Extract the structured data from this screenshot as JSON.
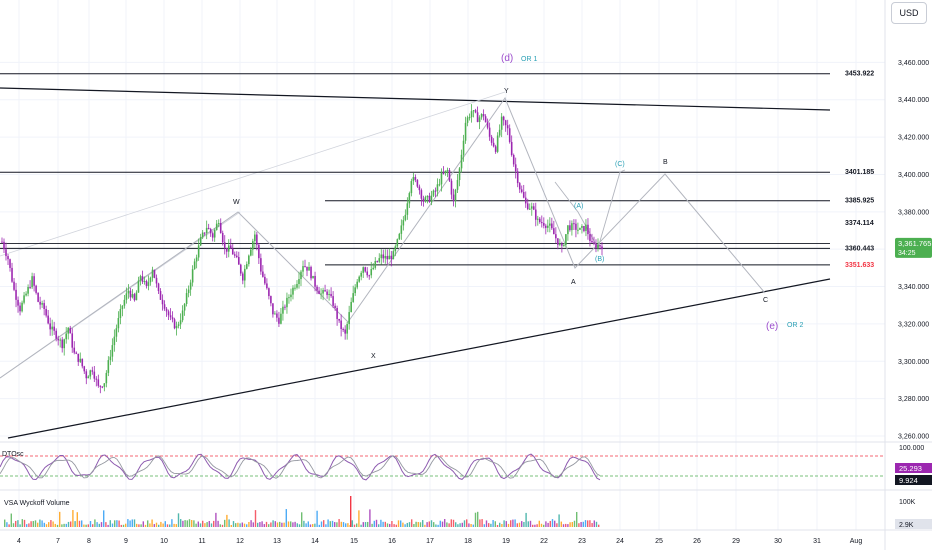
{
  "currency_label": "USD",
  "colors": {
    "up": "#4caf50",
    "down": "#9c27b0",
    "grid": "#f0f3fa",
    "line": "#131722",
    "wave_purple": "#9c4dcc",
    "wave_teal": "#2aa0b5",
    "osc_fast": "#8e5bb0",
    "osc_slow": "#9598a1",
    "red_label": "#f23645",
    "green_tag": "#4caf50"
  },
  "chart_data": [
    {
      "type": "line",
      "title": "",
      "price_axis": {
        "ticks": [
          3460,
          3440,
          3420,
          3400,
          3380,
          3360,
          3340,
          3320,
          3300,
          3280,
          3260
        ],
        "tick_labels": [
          "3,460.000",
          "3,440.000",
          "3,420.000",
          "3,400.000",
          "3,380.000",
          "3,360.000",
          "3,340.000",
          "3,320.000",
          "3,300.000",
          "3,280.000",
          "3,260.000"
        ],
        "range": [
          3255,
          3490
        ]
      },
      "time_axis": {
        "labels": [
          "4",
          "7",
          "8",
          "9",
          "10",
          "11",
          "12",
          "13",
          "14",
          "15",
          "16",
          "17",
          "18",
          "19",
          "22",
          "23",
          "24",
          "25",
          "26",
          "29",
          "30",
          "31",
          "Aug",
          "2",
          "5"
        ]
      },
      "current_price": {
        "label": "3,361.765",
        "timer": "34:25",
        "value": 3361.765
      },
      "levels": [
        {
          "value": 3453.922,
          "label": "3453.922",
          "color": "#131722"
        },
        {
          "value": 3401.185,
          "label": "3401.185",
          "color": "#131722"
        },
        {
          "value": 3385.925,
          "label": "3385.925",
          "color": "#131722"
        },
        {
          "value": 3374.114,
          "label": "3374.114",
          "color": "#131722"
        },
        {
          "value": 3360.443,
          "label": "3360.443",
          "color": "#131722"
        },
        {
          "value": 3351.633,
          "label": "3351.633",
          "color": "#f23645"
        }
      ],
      "wave_labels": [
        {
          "text": "(d)",
          "color": "#9c4dcc",
          "size": 10
        },
        {
          "text": "OR 1",
          "color": "#2aa0b5",
          "size": 7
        },
        {
          "text": "Y",
          "color": "#131722",
          "size": 7
        },
        {
          "text": "W",
          "color": "#131722",
          "size": 7
        },
        {
          "text": "X",
          "color": "#131722",
          "size": 7
        },
        {
          "text": "(C)",
          "color": "#2aa0b5",
          "size": 7
        },
        {
          "text": "B",
          "color": "#131722",
          "size": 7
        },
        {
          "text": "(A)",
          "color": "#2aa0b5",
          "size": 7
        },
        {
          "text": "(B)",
          "color": "#2aa0b5",
          "size": 7
        },
        {
          "text": "A",
          "color": "#131722",
          "size": 7
        },
        {
          "text": "C",
          "color": "#131722",
          "size": 7
        },
        {
          "text": "(e)",
          "color": "#9c4dcc",
          "size": 10
        },
        {
          "text": "OR 2",
          "color": "#2aa0b5",
          "size": 7
        }
      ],
      "price_path": [
        3364,
        3355,
        3338,
        3328,
        3336,
        3344,
        3332,
        3328,
        3318,
        3314,
        3309,
        3318,
        3304,
        3300,
        3292,
        3296,
        3286,
        3289,
        3304,
        3318,
        3330,
        3338,
        3332,
        3346,
        3339,
        3350,
        3336,
        3330,
        3322,
        3318,
        3326,
        3339,
        3353,
        3365,
        3372,
        3367,
        3376,
        3360,
        3360,
        3354,
        3345,
        3358,
        3368,
        3349,
        3338,
        3326,
        3322,
        3330,
        3337,
        3343,
        3352,
        3349,
        3341,
        3336,
        3337,
        3331,
        3320,
        3314,
        3331,
        3344,
        3351,
        3346,
        3352,
        3356,
        3355,
        3357,
        3367,
        3380,
        3398,
        3395,
        3386,
        3387,
        3391,
        3399,
        3402,
        3385,
        3403,
        3428,
        3434,
        3430,
        3432,
        3420,
        3414,
        3429,
        3424,
        3406,
        3393,
        3384,
        3382,
        3375,
        3374,
        3372,
        3366,
        3360,
        3372,
        3372,
        3370,
        3372,
        3362,
        3362
      ],
      "oscillator": {
        "label": "DTOsc",
        "levels": [
          "100.000"
        ],
        "values": [
          "25.293",
          "9.924"
        ],
        "value_colors": [
          "#9c27b0",
          "#131722"
        ]
      },
      "volume": {
        "label": "VSA Wyckoff Volume",
        "scale_labels": [
          "100K",
          "2.9K"
        ]
      }
    }
  ]
}
